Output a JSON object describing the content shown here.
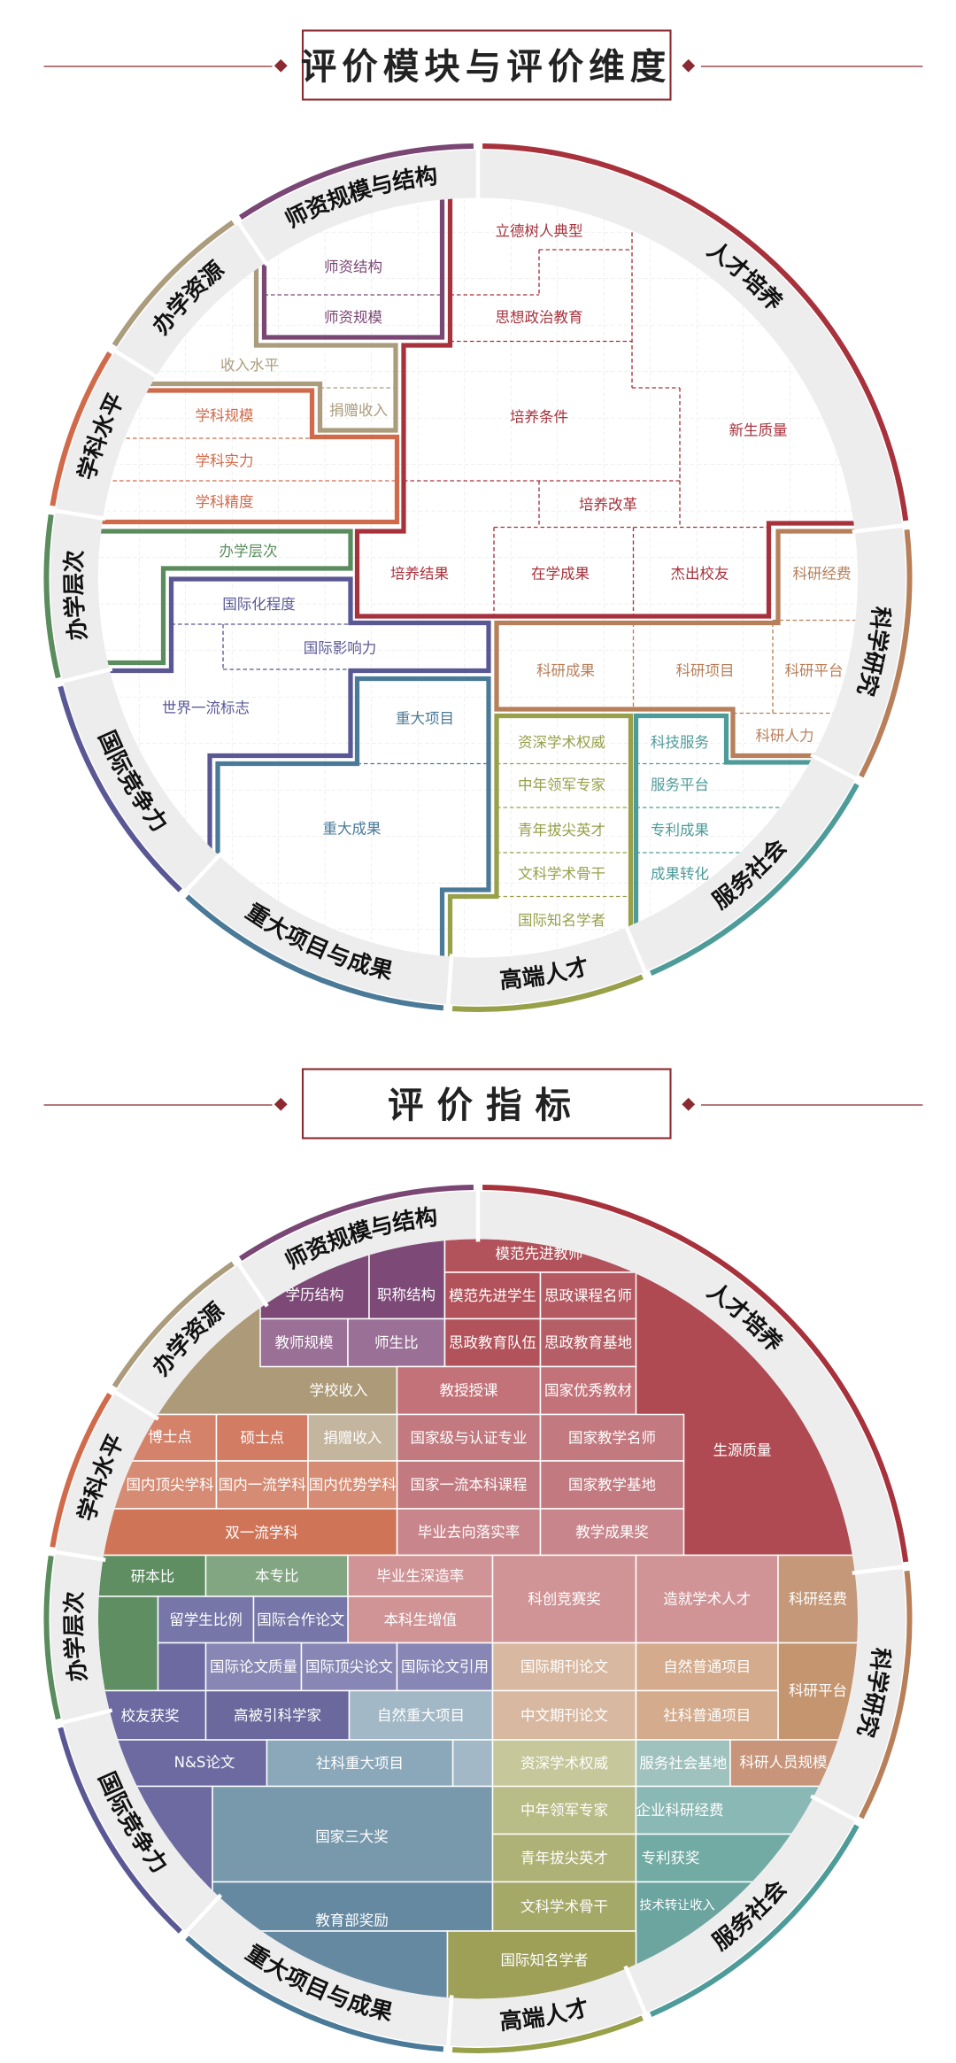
{
  "headers": {
    "modules_title": "评价模块与评价维度",
    "indicators_title": "评价指标",
    "accent_color": "#8b2a30"
  },
  "dimensions": [
    {
      "label": "人才培养",
      "color": "#a8323c"
    },
    {
      "label": "科学研究",
      "color": "#b8805a"
    },
    {
      "label": "服务社会",
      "color": "#4e9c9a"
    },
    {
      "label": "高端人才",
      "color": "#98a04a"
    },
    {
      "label": "重大项目与成果",
      "color": "#4a7a98"
    },
    {
      "label": "国际竞争力",
      "color": "#5a5894"
    },
    {
      "label": "办学层次",
      "color": "#5a8c5e"
    },
    {
      "label": "学科水平",
      "color": "#d06a4a"
    },
    {
      "label": "办学资源",
      "color": "#aa9c7c"
    },
    {
      "label": "师资规模与结构",
      "color": "#7a4674"
    }
  ],
  "modules": [
    {
      "items": [
        "立德树人典型",
        "思想政治教育",
        "培养条件",
        "新生质量",
        "培养改革",
        "培养结果",
        "在学成果",
        "杰出校友"
      ]
    },
    {
      "items": [
        "科研经费",
        "科研成果",
        "科研项目",
        "科研平台",
        "科研人力"
      ]
    },
    {
      "items": [
        "科技服务",
        "服务平台",
        "专利成果",
        "成果转化"
      ]
    },
    {
      "items": [
        "资深学术权威",
        "中年领军专家",
        "青年拔尖英才",
        "文科学术骨干",
        "国际知名学者"
      ]
    },
    {
      "items": [
        "重大项目",
        "重大成果"
      ]
    },
    {
      "items": [
        "国际化程度",
        "国际影响力",
        "世界一流标志"
      ]
    },
    {
      "items": [
        "办学层次"
      ]
    },
    {
      "items": [
        "学科规模",
        "学科实力",
        "学科精度"
      ]
    },
    {
      "items": [
        "收入水平",
        "捐赠收入"
      ]
    },
    {
      "items": [
        "师资结构",
        "师资规模"
      ]
    }
  ],
  "indicators": [
    {
      "items": [
        "模范先进教师",
        "模范先进学生",
        "思政课程名师",
        "思政教育队伍",
        "思政教育基地",
        "教授授课",
        "国家优秀教材",
        "国家级与认证专业",
        "国家教学名师",
        "国家一流本科课程",
        "国家教学基地",
        "毕业去向落实率",
        "教学成果奖",
        "生源质量",
        "毕业生深造率",
        "本科生增值",
        "科创竞赛奖",
        "造就学术人才"
      ]
    },
    {
      "items": [
        "科研经费",
        "国际期刊论文",
        "自然普通项目",
        "科研平台",
        "中文期刊论文",
        "社科普通项目",
        "科研人员规模"
      ]
    },
    {
      "items": [
        "服务社会基地",
        "企业科研经费",
        "专利获奖",
        "技术转让收入"
      ]
    },
    {
      "items": [
        "资深学术权威",
        "中年领军专家",
        "青年拔尖英才",
        "文科学术骨干",
        "国际知名学者"
      ]
    },
    {
      "items": [
        "自然重大项目",
        "社科重大项目",
        "国家三大奖",
        "教育部奖励"
      ]
    },
    {
      "items": [
        "留学生比例",
        "国际合作论文",
        "国际论文质量",
        "国际顶尖论文",
        "国际论文引用",
        "校友获奖",
        "高被引科学家",
        "N&S论文"
      ]
    },
    {
      "items": [
        "研本比",
        "本专比"
      ]
    },
    {
      "items": [
        "博士点",
        "硕士点",
        "国内顶尖学科",
        "国内一流学科",
        "国内优势学科",
        "双一流学科"
      ]
    },
    {
      "items": [
        "学校收入",
        "捐赠收入"
      ]
    },
    {
      "items": [
        "学历结构",
        "职称结构",
        "教师规模",
        "师生比"
      ]
    }
  ]
}
